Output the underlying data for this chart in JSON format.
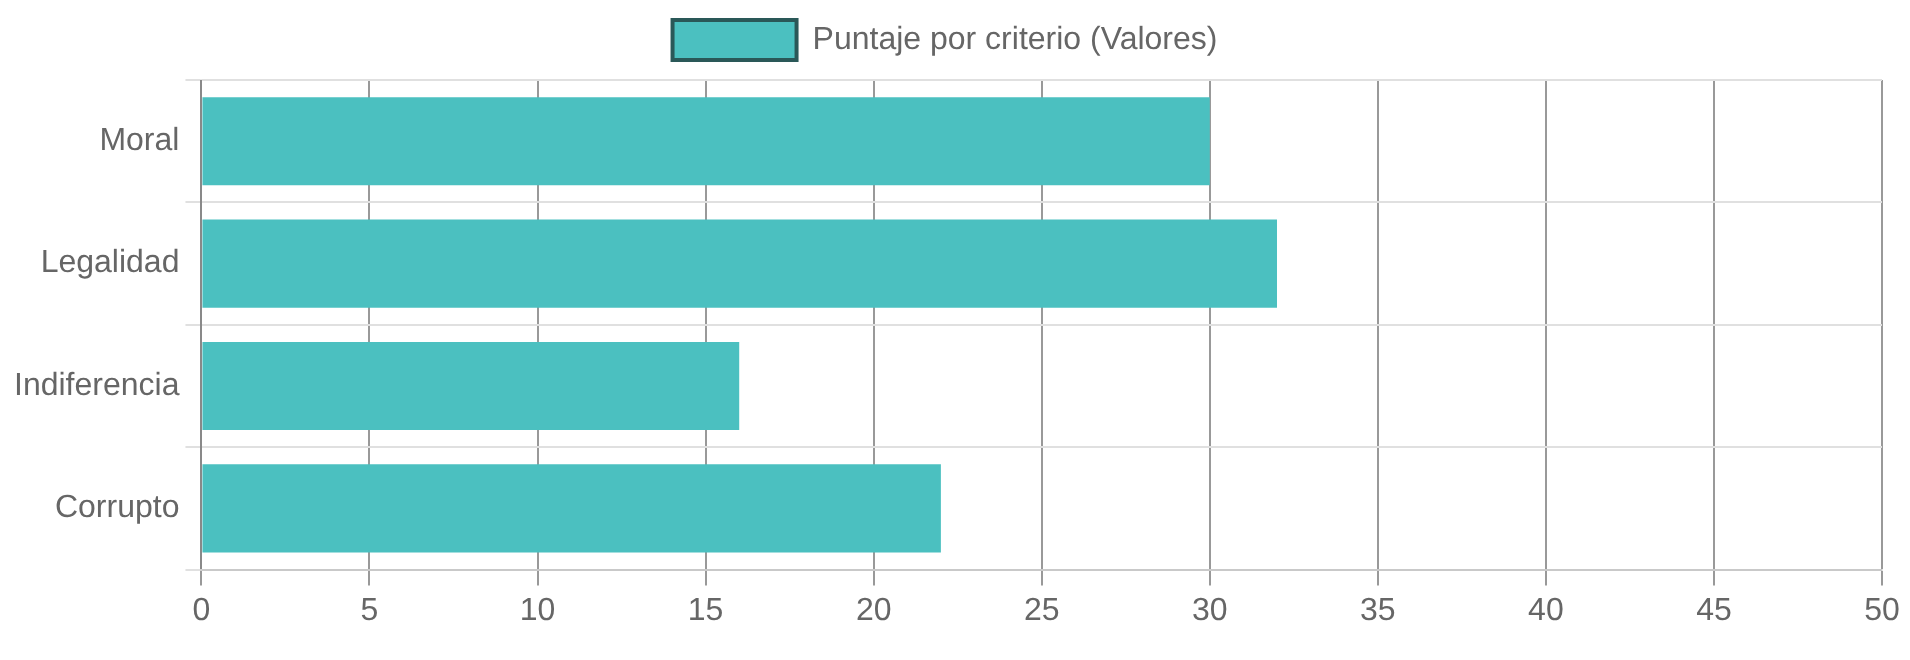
{
  "chart_data": {
    "type": "bar",
    "orientation": "horizontal",
    "categories": [
      "Moral",
      "Legalidad",
      "Indiferencia",
      "Corrupto"
    ],
    "series": [
      {
        "name": "Puntaje por criterio (Valores)",
        "color": "#4bc0c0",
        "values": [
          30,
          32,
          16,
          22
        ]
      }
    ],
    "xlim": [
      0,
      50
    ],
    "xticks": [
      0,
      5,
      10,
      15,
      20,
      25,
      30,
      35,
      40,
      45,
      50
    ],
    "grid": true,
    "legend": "top"
  }
}
